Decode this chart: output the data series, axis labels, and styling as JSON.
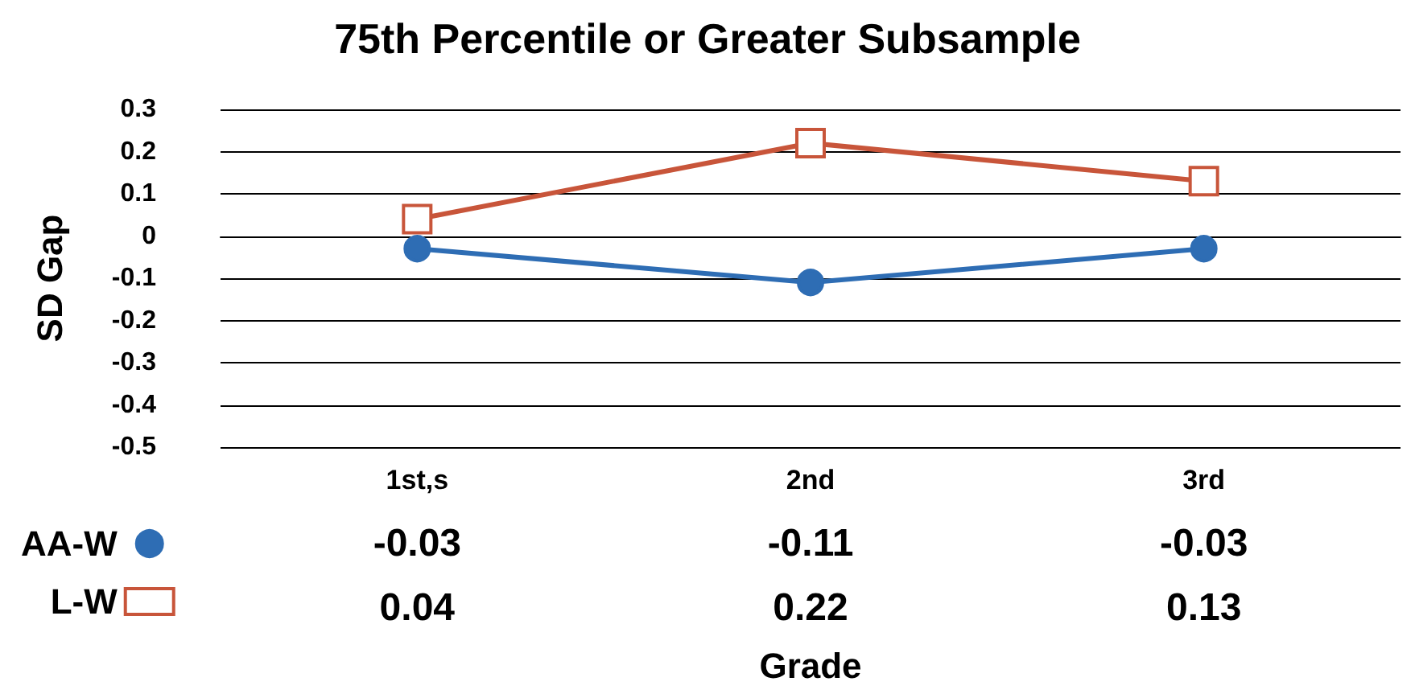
{
  "chart_data": {
    "type": "line",
    "title": "75th Percentile or Greater Subsample",
    "xlabel": "Grade",
    "ylabel": "SD Gap",
    "categories": [
      "1st,s",
      "2nd",
      "3rd"
    ],
    "series": [
      {
        "name": "AA-W",
        "color": "#2e6db4",
        "values": [
          -0.03,
          -0.11,
          -0.03
        ],
        "marker": "circle"
      },
      {
        "name": "L-W",
        "color": "#c8553a",
        "values": [
          0.04,
          0.22,
          0.13
        ],
        "marker": "square"
      }
    ],
    "ylim": [
      -0.5,
      0.3
    ],
    "yticks": [
      -0.5,
      -0.4,
      -0.3,
      -0.2,
      -0.1,
      0,
      0.1,
      0.2,
      0.3
    ],
    "grid": "y",
    "legend": "bottom left",
    "data_labels": true
  }
}
